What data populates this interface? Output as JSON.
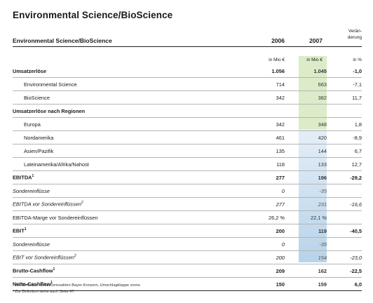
{
  "title": "Environmental Science/BioScience",
  "table": {
    "header_label": "Environmental Science/BioScience",
    "col_2006": "2006",
    "col_2007": "2007",
    "col_change": "Verän-\nderung",
    "unit_2006": "in Mio €",
    "unit_2007": "in Mio €",
    "unit_change": "in %",
    "rows": [
      {
        "label": "Umsatzerlöse",
        "v2006": "1.056",
        "v2007": "1.045",
        "change": "-1,0",
        "style": "bold"
      },
      {
        "label": "Environmental Science",
        "v2006": "714",
        "v2007": "663",
        "change": "-7,1",
        "style": "indent"
      },
      {
        "label": "BioScience",
        "v2006": "342",
        "v2007": "382",
        "change": "11,7",
        "style": "indent"
      },
      {
        "label": "Umsatzerlöse nach Regionen",
        "v2006": "",
        "v2007": "",
        "change": "",
        "style": "bold"
      },
      {
        "label": "Europa",
        "v2006": "342",
        "v2007": "348",
        "change": "1,8",
        "style": "indent"
      },
      {
        "label": "Nordamerika",
        "v2006": "461",
        "v2007": "420",
        "change": "-8,9",
        "style": "indent"
      },
      {
        "label": "Asien/Pazifik",
        "v2006": "135",
        "v2007": "144",
        "change": "6,7",
        "style": "indent"
      },
      {
        "label": "Lateinamerika/Afrika/Nahost",
        "v2006": "118",
        "v2007": "133",
        "change": "12,7",
        "style": "indent"
      },
      {
        "label": "EBITDA",
        "sup": "1",
        "v2006": "277",
        "v2007": "196",
        "change": "-29,2",
        "style": "bold"
      },
      {
        "label": "Sondereinflüsse",
        "v2006": "0",
        "v2007": "-35",
        "change": "",
        "style": "italic"
      },
      {
        "label": "EBITDA vor Sondereinflüssen",
        "sup": "2",
        "v2006": "277",
        "v2007": "231",
        "change": "-16,6",
        "style": "italic"
      },
      {
        "label": "EBITDA-Marge vor Sondereinflüssen",
        "v2006": "26,2 %",
        "v2007": "22,1 %",
        "change": "",
        "style": "plain"
      },
      {
        "label": "EBIT",
        "sup": "1",
        "v2006": "200",
        "v2007": "119",
        "change": "-40,5",
        "style": "bold"
      },
      {
        "label": "Sondereinflüsse",
        "v2006": "0",
        "v2007": "-35",
        "change": "",
        "style": "italic"
      },
      {
        "label": "EBIT vor Sondereinflüssen",
        "sup": "2",
        "v2006": "200",
        "v2007": "154",
        "change": "-23,0",
        "style": "italic"
      },
      {
        "label": "Brutto-Cashflow",
        "sup": "1",
        "v2006": "209",
        "v2007": "162",
        "change": "-22,5",
        "style": "bold"
      },
      {
        "label": "Netto-Cashflow",
        "sup": "1",
        "v2006": "150",
        "v2007": "159",
        "change": "6,0",
        "style": "bold-last"
      }
    ]
  },
  "footnotes": [
    "¹ Zur Definition siehe Kennzahlen Bayer-Konzern, Umschlagklappe vorne.",
    "² Zur Definition siehe auch Seite 47."
  ]
}
